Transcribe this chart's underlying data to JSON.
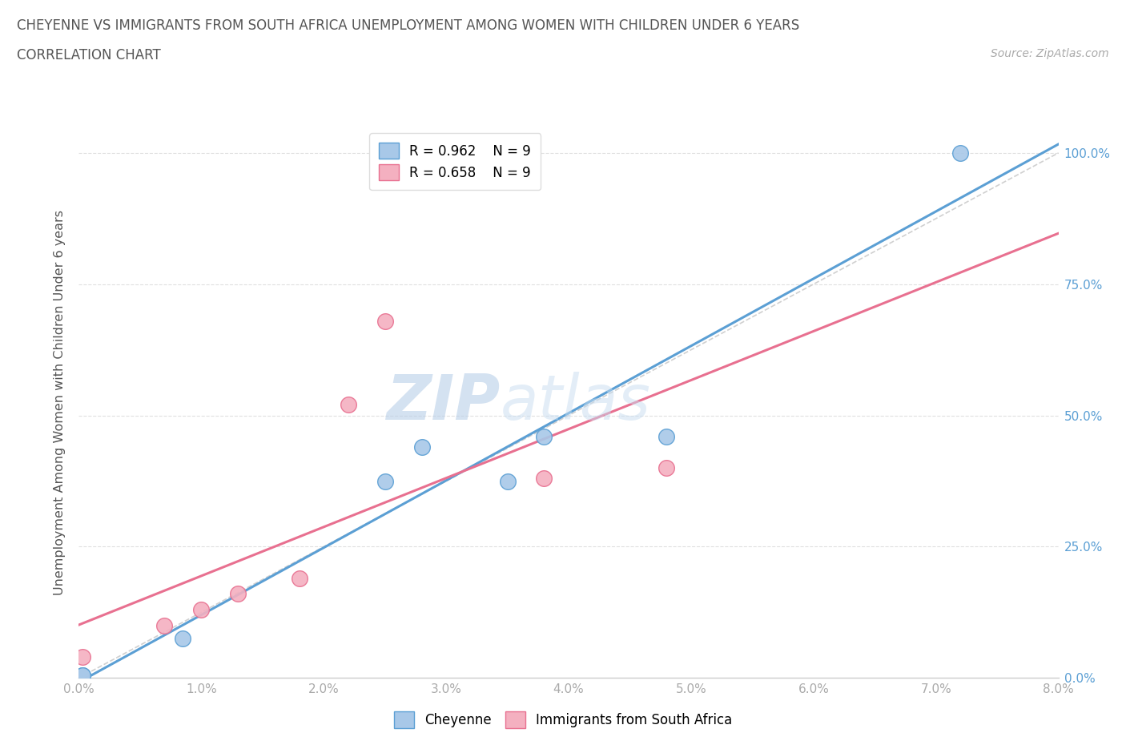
{
  "title_line1": "CHEYENNE VS IMMIGRANTS FROM SOUTH AFRICA UNEMPLOYMENT AMONG WOMEN WITH CHILDREN UNDER 6 YEARS",
  "title_line2": "CORRELATION CHART",
  "source": "Source: ZipAtlas.com",
  "ylabel": "Unemployment Among Women with Children Under 6 years",
  "xlim": [
    0.0,
    0.08
  ],
  "ylim": [
    0.0,
    1.05
  ],
  "watermark_zip": "ZIP",
  "watermark_atlas": "atlas",
  "legend_r1": "R = 0.962",
  "legend_n1": "N = 9",
  "legend_r2": "R = 0.658",
  "legend_n2": "N = 9",
  "cheyenne_x": [
    0.0003,
    0.0003,
    0.0085,
    0.025,
    0.028,
    0.035,
    0.038,
    0.048,
    0.072
  ],
  "cheyenne_y": [
    0.005,
    0.005,
    0.075,
    0.375,
    0.44,
    0.375,
    0.46,
    0.46,
    1.0
  ],
  "sa_x": [
    0.0003,
    0.007,
    0.01,
    0.013,
    0.018,
    0.022,
    0.025,
    0.038,
    0.048
  ],
  "sa_y": [
    0.04,
    0.1,
    0.13,
    0.16,
    0.19,
    0.52,
    0.68,
    0.38,
    0.4
  ],
  "cheyenne_color": "#a8c8e8",
  "sa_color": "#f4b0c0",
  "cheyenne_line_color": "#5b9fd4",
  "sa_line_color": "#e87090",
  "diagonal_color": "#d0d0d0",
  "grid_color": "#e0e0e0",
  "background_color": "#ffffff",
  "title_color": "#555555",
  "tick_label_color": "#aaaaaa",
  "right_tick_color": "#5b9fd4"
}
